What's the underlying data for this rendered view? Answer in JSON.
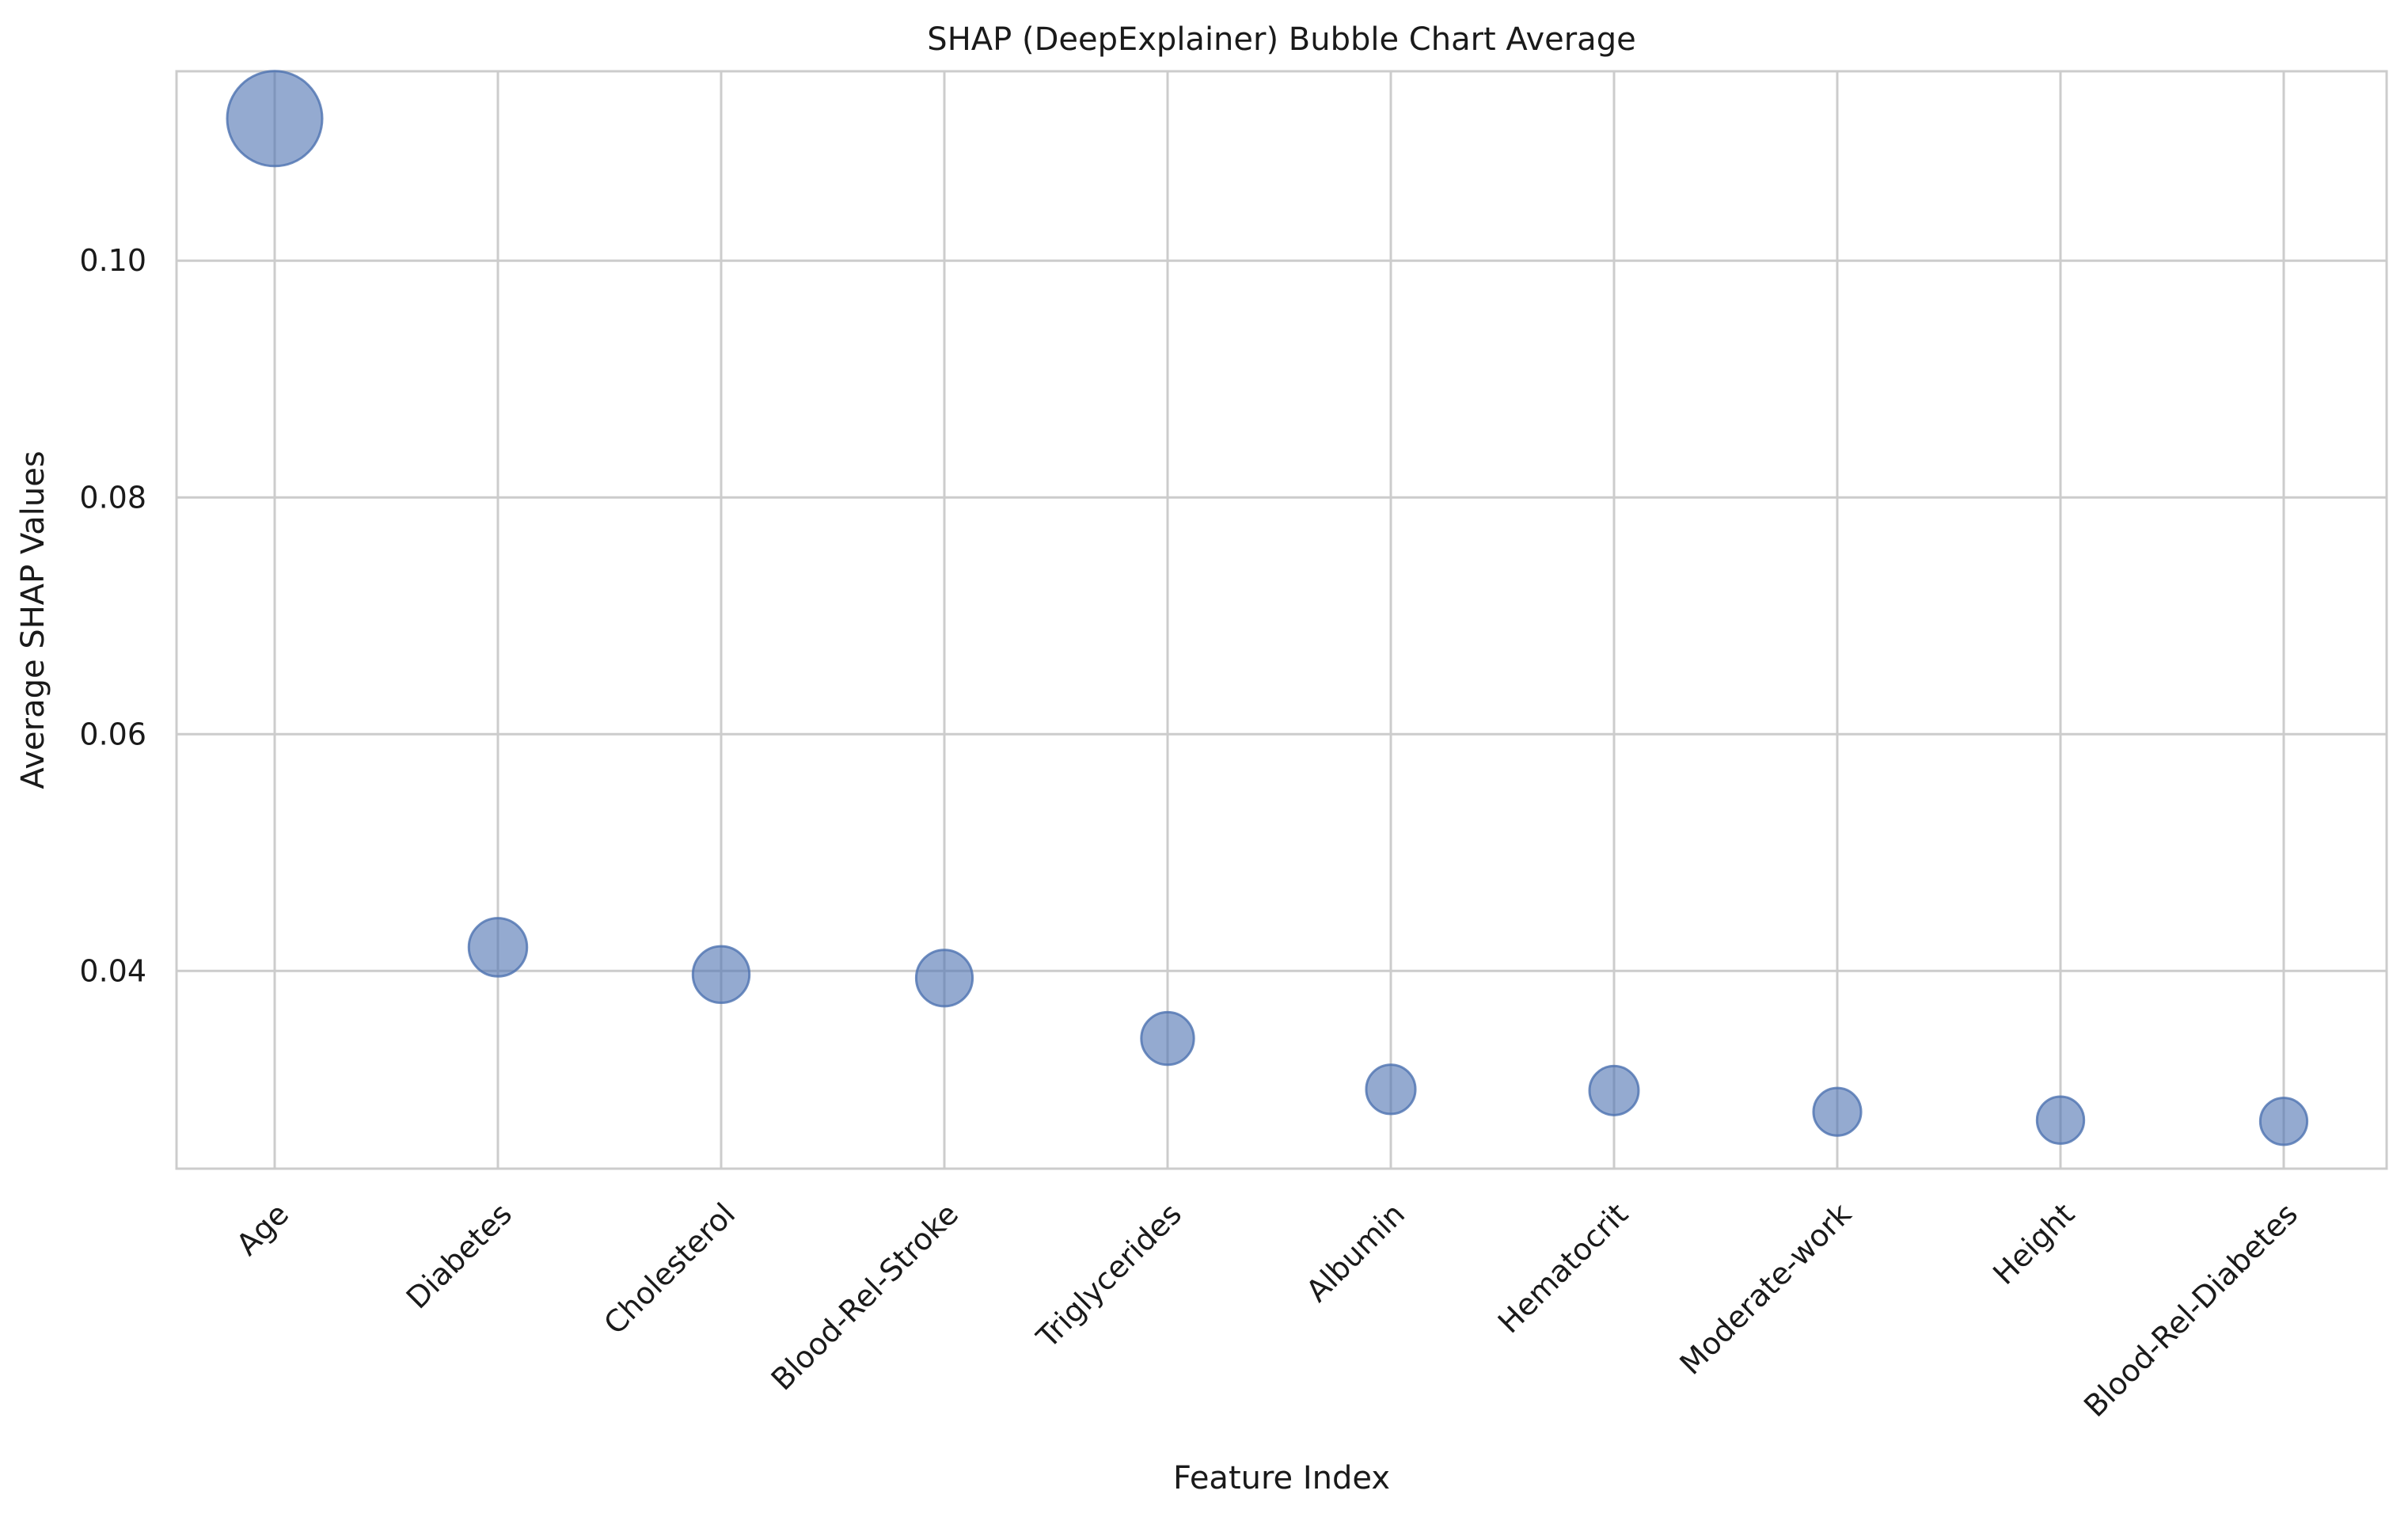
{
  "chart_data": {
    "type": "scatter",
    "variant": "bubble",
    "title": "SHAP (DeepExplainer) Bubble Chart Average",
    "xlabel": "Feature Index",
    "ylabel": "Average SHAP Values",
    "categories": [
      "Age",
      "Diabetes",
      "Cholesterol",
      "Blood-Rel-Stroke",
      "Triglycerides",
      "Albumin",
      "Hematocrit",
      "Moderate-work",
      "Height",
      "Blood-Rel-Diabetes"
    ],
    "values": [
      0.112,
      0.042,
      0.0397,
      0.0394,
      0.0343,
      0.03,
      0.0299,
      0.0281,
      0.0274,
      0.0273
    ],
    "bubble_size_encodes": "values",
    "ylim": [
      0.0233,
      0.116
    ],
    "yticks": [
      0.04,
      0.06,
      0.08,
      0.1
    ],
    "ytick_labels": [
      "0.04",
      "0.06",
      "0.08",
      "0.10"
    ],
    "grid": true,
    "legend": false,
    "colors": {
      "bubble_fill": "#4c72b0",
      "bubble_edge": "#4c72b0",
      "grid": "#cccccc",
      "spine": "#cccccc",
      "text": "#1a1a1a"
    }
  }
}
